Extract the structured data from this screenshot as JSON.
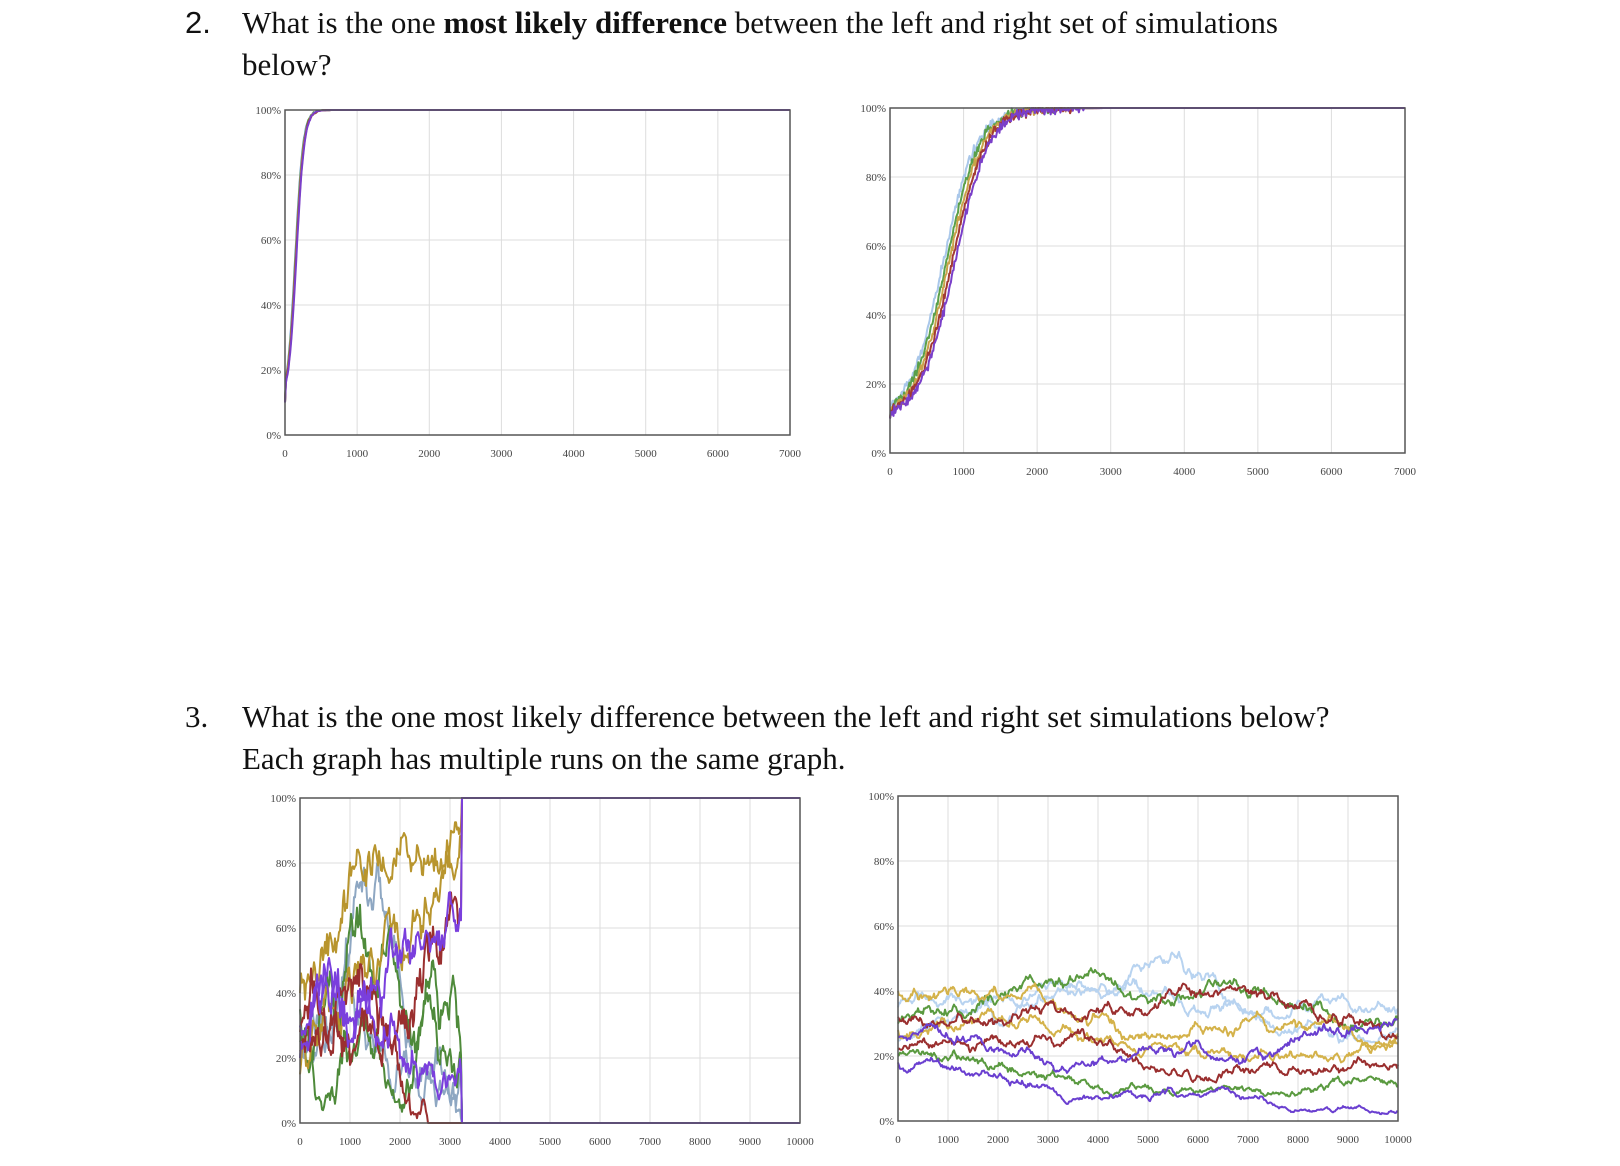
{
  "q2": {
    "number": "2.",
    "text_a": "What is the one ",
    "text_bold": "most likely difference",
    "text_b": " between the left and right set of simulations",
    "text_c": "below?"
  },
  "q3": {
    "number": "3.",
    "line1": "What is the one most likely difference between the left and right set simulations below?",
    "line2": "Each graph has multiple runs on the same graph."
  },
  "chart_data": [
    {
      "type": "line",
      "xlim": [
        0,
        7000
      ],
      "ylim": [
        0,
        100
      ],
      "x_ticks": [
        "0",
        "1000",
        "2000",
        "3000",
        "4000",
        "5000",
        "6000",
        "7000"
      ],
      "y_ticks": [
        "0%",
        "20%",
        "40%",
        "60%",
        "80%",
        "100%"
      ],
      "grid": true,
      "series_colors": [
        "#5b8fd9",
        "#5aa04a",
        "#c9a34a",
        "#a23a33",
        "#7a3fc9"
      ],
      "description_points": {
        "x": [
          0,
          100,
          200,
          300,
          400,
          500,
          600,
          7000
        ],
        "y": [
          10,
          35,
          65,
          88,
          97,
          99,
          100,
          100
        ]
      }
    },
    {
      "type": "line",
      "xlim": [
        0,
        7000
      ],
      "ylim": [
        0,
        100
      ],
      "x_ticks": [
        "0",
        "1000",
        "2000",
        "3000",
        "4000",
        "5000",
        "6000",
        "7000"
      ],
      "y_ticks": [
        "0%",
        "20%",
        "40%",
        "60%",
        "80%",
        "100%"
      ],
      "grid": true,
      "series_colors": [
        "#a9c7ea",
        "#5aa04a",
        "#c9a34a",
        "#a23a33",
        "#7a3fc9"
      ],
      "description_points": {
        "x": [
          0,
          400,
          800,
          1200,
          1600,
          2000,
          2400,
          7000
        ],
        "y": [
          12,
          28,
          58,
          85,
          95,
          99,
          100,
          100
        ]
      }
    },
    {
      "type": "line",
      "xlim": [
        0,
        10000
      ],
      "ylim": [
        0,
        100
      ],
      "x_ticks": [
        "0",
        "1000",
        "2000",
        "3000",
        "4000",
        "5000",
        "6000",
        "7000",
        "8000",
        "9000",
        "10000"
      ],
      "y_ticks": [
        "0%",
        "20%",
        "40%",
        "60%",
        "80%",
        "100%"
      ],
      "grid": true,
      "series_colors": [
        "#8ea7c2",
        "#4e8a3a",
        "#b8952e",
        "#9a2f2f",
        "#7a3fdd"
      ],
      "fixation": "rapid, all runs reach 0% or 100% by ~3200"
    },
    {
      "type": "line",
      "xlim": [
        0,
        10000
      ],
      "ylim": [
        0,
        100
      ],
      "x_ticks": [
        "0",
        "1000",
        "2000",
        "3000",
        "4000",
        "5000",
        "6000",
        "7000",
        "8000",
        "9000",
        "10000"
      ],
      "y_ticks": [
        "0%",
        "20%",
        "40%",
        "60%",
        "80%",
        "100%"
      ],
      "grid": true,
      "series_colors": [
        "#b8d3f0",
        "#5a9a40",
        "#d4b24a",
        "#9a2f2f",
        "#6a3fd0"
      ],
      "fixation": "slow, runs wander for most of the 10000 generations"
    }
  ]
}
